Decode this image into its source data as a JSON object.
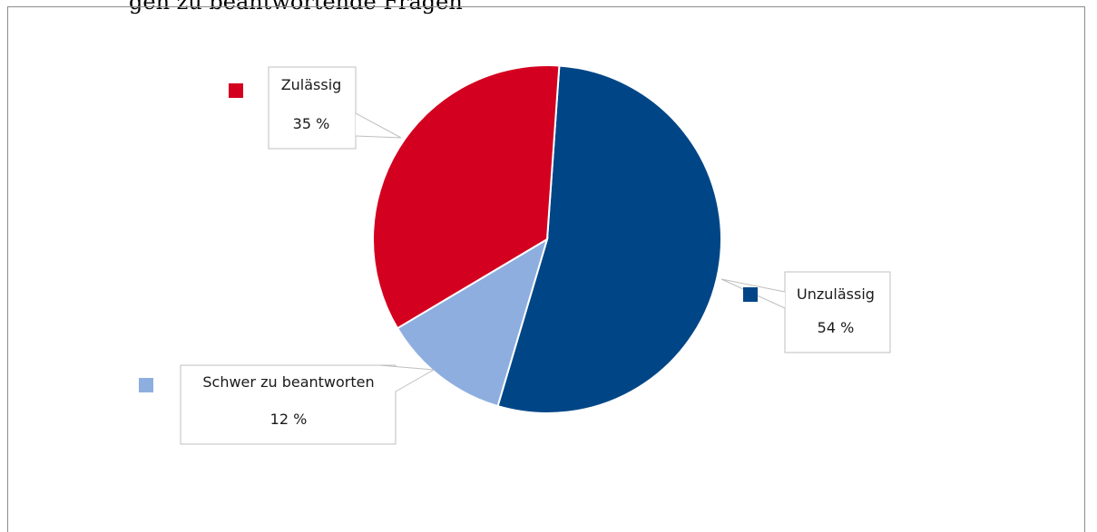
{
  "header": {
    "title_fragment": "gen zu beantwortende Fragen"
  },
  "chart_data": {
    "type": "pie",
    "title": "",
    "start_angle_deg": 4,
    "slices": [
      {
        "label": "Unzulässig",
        "value": 54,
        "value_text": "54 %",
        "color": "#004687"
      },
      {
        "label": "Schwer zu beantworten",
        "value": 12,
        "value_text": "12 %",
        "color": "#8eaedf"
      },
      {
        "label": "Zulässig",
        "value": 35,
        "value_text": "35 %",
        "color": "#d3001f"
      }
    ],
    "legend_placement": "callouts"
  }
}
